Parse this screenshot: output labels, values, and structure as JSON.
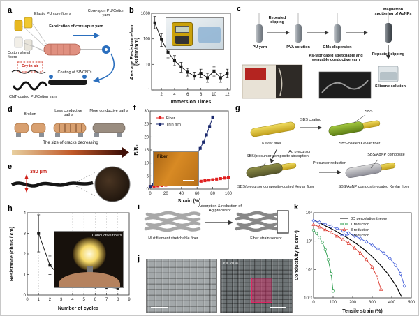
{
  "panel_a": {
    "label": "a",
    "elastic": "Elastic PU core fibers",
    "fabrication": "Fabrication of core-spun yarn",
    "core_spun": "Core-spun PU/Cotton yarn",
    "cotton": "Cotton sheath fibers",
    "dry": "Dry in air",
    "coating": "Coating of SWCNTs",
    "cnt": "CNT-coated PU/Cotton yarn"
  },
  "panel_b": {
    "label": "b"
  },
  "panel_c": {
    "label": "c",
    "repeated_dipping": "Repeated dipping",
    "magnetron": "Magnetron sputtering of AgNPs",
    "pu_yarn": "PU yarn",
    "pva": "PVA solution",
    "gms": "GMs dispersion",
    "repeated_dipping2": "Repeated dipping",
    "silicone": "Silicone solution",
    "as_fabricated": "As-fabricated stretchable and weavable conductive yarn"
  },
  "panel_d": {
    "label": "d",
    "broken": "Broken",
    "less": "Less conductive paths",
    "more": "More conductive paths",
    "caption": "The size of cracks decreasing"
  },
  "panel_e": {
    "label": "e",
    "measurement": "380 μm"
  },
  "panel_f": {
    "label": "f",
    "inset_label": "Fiber"
  },
  "panel_g": {
    "label": "g",
    "kevlar": "Kevlar fiber",
    "sbs_coating": "SBS coating",
    "sbs": "SBS",
    "sbs_coated": "SBS-coated Kevlar fiber",
    "ag_absorption": "Ag precursor absorption",
    "sbs_precursor": "SBS/precursor composite",
    "precursor_reduction": "Precursor reduction",
    "sbs_agnp": "SBS/AgNP composite",
    "sbs_precursor_coated": "SBS/precursor composite-coated Kevlar fiber",
    "sbs_agnp_coated": "SBS/AgNP composite-coated Kevlar fiber"
  },
  "panel_h": {
    "label": "h",
    "inset_label": "Conductive fibers"
  },
  "panel_i": {
    "label": "i",
    "multifilament": "Multifilament stretchable fiber",
    "arrow_label": "Adsorption & reduction of Ag precursor",
    "sensor": "Fiber strain sensor"
  },
  "panel_j": {
    "label": "j",
    "strain": "ε = 20 %"
  },
  "panel_k": {
    "label": "k"
  },
  "chart_data": [
    {
      "id": "b",
      "type": "line",
      "xlabel": "Immersion Times",
      "ylabel": [
        "Average Resistance/mm",
        "(KOhm/mm)"
      ],
      "xscale": "linear",
      "yscale": "log",
      "xlim": [
        0.5,
        12.5
      ],
      "ylim": [
        1,
        1000
      ],
      "xticks": [
        2,
        4,
        6,
        8,
        10,
        12
      ],
      "yticks": [
        1,
        10,
        100,
        1000
      ],
      "series": [
        {
          "color": "#1a1a1a",
          "marker": "square",
          "lw": 1,
          "x": [
            1,
            2,
            3,
            4,
            5,
            6,
            7,
            8,
            9,
            10,
            11,
            12
          ],
          "y": [
            420,
            95,
            30,
            14,
            8,
            5,
            3.5,
            4.5,
            3,
            5.5,
            3,
            4.5
          ],
          "ylo": [
            250,
            50,
            18,
            9,
            5,
            3.5,
            2.5,
            3,
            2,
            3.5,
            2,
            3
          ],
          "yhi": [
            750,
            160,
            45,
            22,
            12,
            7,
            5,
            6.5,
            4.5,
            8,
            4.5,
            6.5
          ]
        }
      ]
    },
    {
      "id": "f",
      "type": "line",
      "xlabel": "Strain (%)",
      "ylabel": "R/R₀",
      "xscale": "linear",
      "yscale": "linear",
      "xlim": [
        0,
        100
      ],
      "ylim": [
        0,
        30
      ],
      "xticks": [
        0,
        20,
        40,
        60,
        80,
        100
      ],
      "yticks": [
        0,
        5,
        10,
        15,
        20,
        25,
        30
      ],
      "legend_position": "top-left",
      "series": [
        {
          "name": "Fiber",
          "color": "#e02020",
          "marker": "square",
          "lw": 1,
          "x": [
            0,
            5,
            10,
            15,
            20,
            25,
            30,
            35,
            40,
            45,
            50,
            55,
            60,
            65,
            70,
            75,
            80,
            85,
            90,
            95,
            100
          ],
          "y": [
            1.0,
            1.1,
            1.2,
            1.35,
            1.5,
            1.65,
            1.8,
            1.95,
            2.1,
            2.25,
            2.4,
            2.6,
            2.8,
            3.0,
            3.2,
            3.4,
            3.6,
            3.8,
            4.0,
            4.2,
            4.4
          ]
        },
        {
          "name": "Thin film",
          "color": "#1c2a6e",
          "marker": "square",
          "lw": 1,
          "x": [
            0,
            4,
            8,
            12,
            16,
            20,
            24,
            28,
            32,
            36,
            40,
            44,
            48,
            52,
            56,
            60,
            64,
            68,
            72,
            76,
            80
          ],
          "y": [
            1.0,
            1.7,
            2.4,
            3.1,
            3.8,
            4.5,
            5.2,
            5.9,
            6.6,
            7.3,
            8.0,
            8.8,
            9.7,
            10.7,
            12.0,
            13.6,
            15.6,
            18.0,
            20.8,
            24.0,
            27.6
          ]
        }
      ]
    },
    {
      "id": "h",
      "type": "line",
      "xlabel": "Number of cycles",
      "ylabel": "Resistance (ohms / cm)",
      "xscale": "linear",
      "yscale": "linear",
      "xlim": [
        0,
        9
      ],
      "ylim": [
        0,
        4
      ],
      "xticks": [
        0,
        1,
        2,
        3,
        4,
        5,
        6,
        7,
        8,
        9
      ],
      "yticks": [
        0,
        1,
        2,
        3,
        4
      ],
      "grid_x": [
        1,
        2,
        3,
        4,
        5,
        6,
        7,
        8
      ],
      "series": [
        {
          "color": "#1a1a1a",
          "marker": "square",
          "lw": 1,
          "x": [
            1,
            2,
            3,
            4,
            5,
            6,
            7,
            8
          ],
          "y": [
            3.0,
            1.45,
            0.85,
            0.6,
            0.5,
            0.42,
            0.38,
            0.33
          ],
          "ylo": [
            2.1,
            1.0,
            0.6,
            0.45,
            0.36,
            0.3,
            0.28,
            0.25
          ],
          "yhi": [
            3.9,
            1.9,
            1.1,
            0.75,
            0.64,
            0.54,
            0.48,
            0.41
          ]
        }
      ]
    },
    {
      "id": "k",
      "type": "line",
      "xlabel": "Tensile strain (%)",
      "ylabel": "Conductivity (S cm⁻¹)",
      "xscale": "linear",
      "yscale": "log",
      "xlim": [
        0,
        500
      ],
      "ylim": [
        0.01,
        10000
      ],
      "xticks": [
        0,
        100,
        200,
        300,
        400,
        500
      ],
      "yticks": [
        0.01,
        1,
        100,
        10000
      ],
      "ytick_labels": [
        "10⁻²",
        "10⁰",
        "10²",
        "10⁴"
      ],
      "legend_position": "top-right",
      "series": [
        {
          "name": "3D percolation theory",
          "color": "#000000",
          "lw": 1.2,
          "x": [
            0,
            30,
            60,
            100,
            140,
            180,
            220,
            260,
            300,
            340,
            380,
            420,
            450
          ],
          "y": [
            3000,
            2000,
            1200,
            650,
            320,
            150,
            65,
            25,
            8,
            2.2,
            0.5,
            0.08,
            0.012
          ]
        },
        {
          "name": "1 reduction",
          "color": "#2e9e4f",
          "marker": "circle",
          "open": true,
          "lw": 0.9,
          "x": [
            0,
            15,
            30,
            45,
            60,
            75,
            90,
            100
          ],
          "y": [
            600,
            350,
            180,
            80,
            25,
            5,
            0.5,
            0.03
          ]
        },
        {
          "name": "3 reduction",
          "color": "#d93025",
          "marker": "triangle",
          "open": true,
          "lw": 0.9,
          "x": [
            0,
            30,
            60,
            90,
            120,
            150,
            180,
            210,
            240,
            270,
            300,
            325,
            345
          ],
          "y": [
            1500,
            1000,
            650,
            400,
            230,
            130,
            70,
            33,
            14,
            5,
            1.5,
            0.3,
            0.04
          ]
        },
        {
          "name": "5 reduction",
          "color": "#3f5bd9",
          "marker": "diamond",
          "open": true,
          "lw": 0.9,
          "x": [
            0,
            30,
            60,
            90,
            120,
            150,
            180,
            210,
            240,
            270,
            300,
            330,
            360,
            390,
            420,
            445,
            465
          ],
          "y": [
            2800,
            2100,
            1550,
            1100,
            780,
            540,
            360,
            235,
            150,
            90,
            52,
            28,
            14,
            6,
            2,
            0.5,
            0.07
          ]
        }
      ]
    }
  ]
}
